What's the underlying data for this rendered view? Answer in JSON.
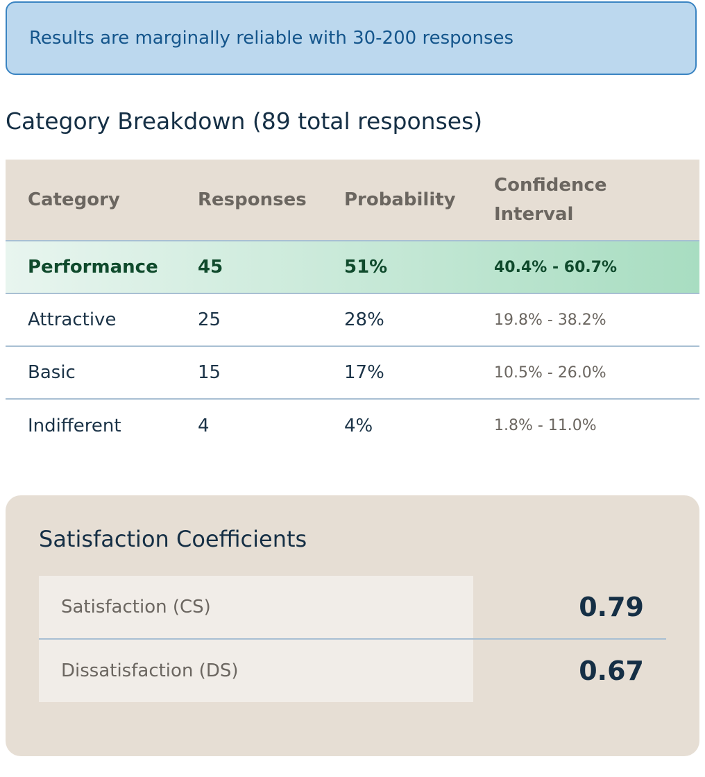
{
  "alert": {
    "text": "Results are marginally reliable with 30-200 responses"
  },
  "breakdown": {
    "title": "Category Breakdown (89 total responses)",
    "headers": [
      "Category",
      "Responses",
      "Probability",
      "Confidence Interval"
    ],
    "rows": [
      {
        "category": "Performance",
        "responses": "45",
        "probability": "51%",
        "ci": "40.4% - 60.7%"
      },
      {
        "category": "Attractive",
        "responses": "25",
        "probability": "28%",
        "ci": "19.8% - 38.2%"
      },
      {
        "category": "Basic",
        "responses": "15",
        "probability": "17%",
        "ci": "10.5% - 26.0%"
      },
      {
        "category": "Indifferent",
        "responses": "4",
        "probability": "4%",
        "ci": "1.8% - 11.0%"
      }
    ]
  },
  "coefficients": {
    "title": "Satisfaction Coefficients",
    "items": [
      {
        "label": "Satisfaction (CS)",
        "value": "0.79"
      },
      {
        "label": "Dissatisfaction (DS)",
        "value": "0.67"
      }
    ]
  },
  "colors": {
    "alert_bg": "#bcd8ee",
    "alert_border": "#3a84c2",
    "header_bg": "#e6ded4",
    "highlight_start": "#e8f5ef",
    "highlight_end": "#a8ddc1",
    "highlight_text": "#0f4a2c"
  }
}
